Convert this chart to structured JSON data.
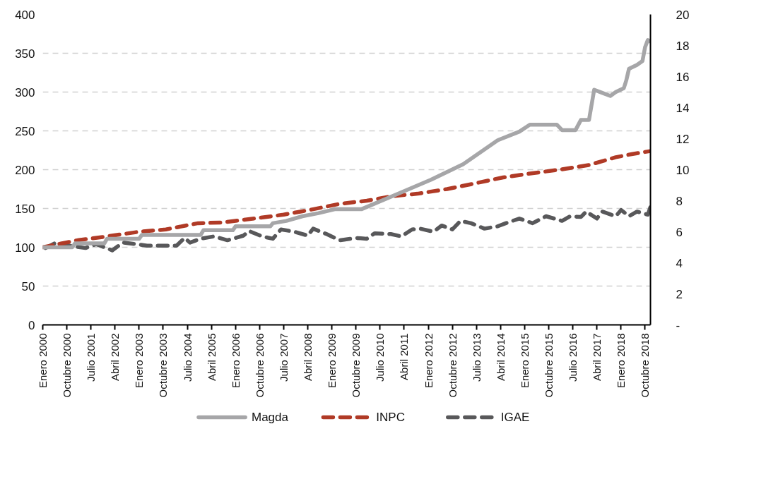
{
  "chart_data": {
    "type": "line",
    "x": [
      "2000-01",
      "2000-12",
      "2001-01",
      "2001-12",
      "2002-01",
      "2003-01",
      "2003-02",
      "2004-12",
      "2005-01",
      "2005-12",
      "2006-01",
      "2007-02",
      "2007-03",
      "2007-08",
      "2008-02",
      "2008-08",
      "2009-02",
      "2009-12",
      "2011-01",
      "2012-02",
      "2013-02",
      "2014-03",
      "2014-11",
      "2015-03",
      "2016-01",
      "2016-03",
      "2016-08",
      "2016-10",
      "2017-01",
      "2017-03",
      "2017-06",
      "2017-09",
      "2017-11",
      "2018-02",
      "2018-03",
      "2018-04",
      "2018-07",
      "2018-09",
      "2018-10",
      "2018-11",
      "2018-12"
    ],
    "series": [
      {
        "name": "Magda",
        "color": "#a6a6a8",
        "line_style": "solid",
        "values": [
          100,
          100,
          105,
          105,
          111,
          111,
          116,
          116,
          122,
          122,
          127,
          127,
          131,
          134,
          140,
          144,
          149,
          149,
          168,
          187,
          207,
          238,
          249,
          258,
          258,
          251,
          251,
          264,
          264,
          303,
          299,
          295,
          300,
          305,
          315,
          330,
          335,
          340,
          358,
          367,
          365
        ]
      },
      {
        "name": "INPC",
        "color": "#b03a26",
        "line_style": "dashed",
        "x": [
          "2000-01",
          "2001-02",
          "2002-01",
          "2003-01",
          "2003-11",
          "2004-11",
          "2005-08",
          "2006-08",
          "2007-07",
          "2008-06",
          "2009-04",
          "2010-02",
          "2010-12",
          "2011-09",
          "2012-08",
          "2013-06",
          "2014-05",
          "2015-03",
          "2016-02",
          "2017-01",
          "2017-11",
          "2018-05",
          "2018-12"
        ],
        "values": [
          100,
          109,
          114,
          120,
          123,
          131,
          132,
          137,
          142,
          149,
          156,
          160,
          166,
          169,
          175,
          182,
          190,
          195,
          200,
          206,
          216,
          220,
          224
        ]
      },
      {
        "name": "IGAE",
        "color": "#58585a",
        "line_style": "dashed",
        "x": [
          "2000-02",
          "2000-06",
          "2000-11",
          "2001-05",
          "2001-09",
          "2002-03",
          "2002-07",
          "2002-12",
          "2003-04",
          "2003-10",
          "2004-03",
          "2004-06",
          "2004-08",
          "2004-12",
          "2005-05",
          "2005-10",
          "2006-04",
          "2006-06",
          "2006-11",
          "2007-03",
          "2007-06",
          "2007-11",
          "2008-04",
          "2008-06",
          "2008-11",
          "2009-04",
          "2009-10",
          "2010-02",
          "2010-05",
          "2010-11",
          "2011-03",
          "2011-07",
          "2011-10",
          "2012-03",
          "2012-06",
          "2012-10",
          "2013-01",
          "2013-05",
          "2013-10",
          "2014-03",
          "2014-06",
          "2014-11",
          "2015-04",
          "2015-09",
          "2016-03",
          "2016-06",
          "2016-10",
          "2016-12",
          "2017-04",
          "2017-06",
          "2017-11",
          "2018-01",
          "2018-04",
          "2018-07",
          "2018-11",
          "2018-12"
        ],
        "values": [
          99,
          106,
          102,
          99,
          104,
          96,
          106,
          104,
          102,
          102,
          102,
          112,
          106,
          111,
          114,
          109,
          115,
          121,
          114,
          111,
          123,
          120,
          115,
          124,
          117,
          109,
          112,
          111,
          118,
          117,
          114,
          123,
          124,
          120,
          128,
          123,
          134,
          131,
          124,
          127,
          131,
          137,
          131,
          140,
          134,
          140,
          139,
          146,
          137,
          146,
          140,
          148,
          140,
          146,
          142,
          152
        ]
      }
    ],
    "xlim": [
      "2000-01",
      "2018-12"
    ],
    "xticks": [
      {
        "value": "2000-01",
        "label": "Enero 2000"
      },
      {
        "value": "2000-10",
        "label": "Octubre 2000"
      },
      {
        "value": "2001-07",
        "label": "Julio 2001"
      },
      {
        "value": "2002-04",
        "label": "Abril 2002"
      },
      {
        "value": "2003-01",
        "label": "Enero 2003"
      },
      {
        "value": "2003-10",
        "label": "Octubre 2003"
      },
      {
        "value": "2004-07",
        "label": "Julio 2004"
      },
      {
        "value": "2005-04",
        "label": "Abril 2005"
      },
      {
        "value": "2006-01",
        "label": "Enero 2006"
      },
      {
        "value": "2006-10",
        "label": "Octubre 2006"
      },
      {
        "value": "2007-07",
        "label": "Julio 2007"
      },
      {
        "value": "2008-04",
        "label": "Abril 2008"
      },
      {
        "value": "2009-01",
        "label": "Enero 2009"
      },
      {
        "value": "2009-10",
        "label": "Octubre 2009"
      },
      {
        "value": "2010-07",
        "label": "Julio 2010"
      },
      {
        "value": "2011-04",
        "label": "Abril 2011"
      },
      {
        "value": "2012-01",
        "label": "Enero 2012"
      },
      {
        "value": "2012-10",
        "label": "Octubre 2012"
      },
      {
        "value": "2013-07",
        "label": "Julio 2013"
      },
      {
        "value": "2014-04",
        "label": "Abril 2014"
      },
      {
        "value": "2015-01",
        "label": "Enero 2015"
      },
      {
        "value": "2015-10",
        "label": "Octubre 2015"
      },
      {
        "value": "2016-07",
        "label": "Julio 2016"
      },
      {
        "value": "2017-04",
        "label": "Abril 2017"
      },
      {
        "value": "2018-01",
        "label": "Enero 2018"
      },
      {
        "value": "2018-10",
        "label": "Octubre 2018"
      }
    ],
    "ylim": [
      0,
      400
    ],
    "yticks": [
      0,
      50,
      100,
      150,
      200,
      250,
      300,
      350,
      400
    ],
    "y2lim": [
      0,
      20
    ],
    "y2ticks": [
      {
        "value": 0,
        "label": "-"
      },
      2,
      4,
      6,
      8,
      10,
      12,
      14,
      16,
      18,
      20
    ],
    "grid": "y",
    "legend": "bottom",
    "marker": "none"
  }
}
